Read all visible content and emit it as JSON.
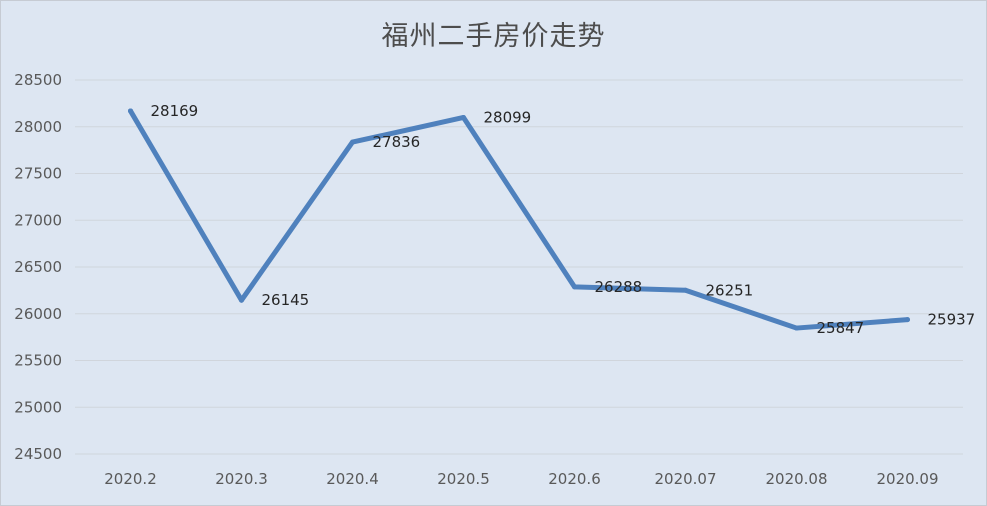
{
  "chart_data": {
    "type": "line",
    "title": "福州二手房价走势",
    "xlabel": "",
    "ylabel": "",
    "categories": [
      "2020.2",
      "2020.3",
      "2020.4",
      "2020.5",
      "2020.6",
      "2020.07",
      "2020.08",
      "2020.09"
    ],
    "series": [
      {
        "values": [
          28169,
          26145,
          27836,
          28099,
          26288,
          26251,
          25847,
          25937
        ]
      }
    ],
    "ylim": [
      24500,
      28500
    ],
    "yticks": [
      24500,
      25000,
      25500,
      26000,
      26500,
      27000,
      27500,
      28000,
      28500
    ],
    "grid": "horizontal",
    "legend": "none",
    "colors": {
      "line": "#4f81bd",
      "grid": "#d0d5dc",
      "background": "#dde6f2"
    }
  }
}
